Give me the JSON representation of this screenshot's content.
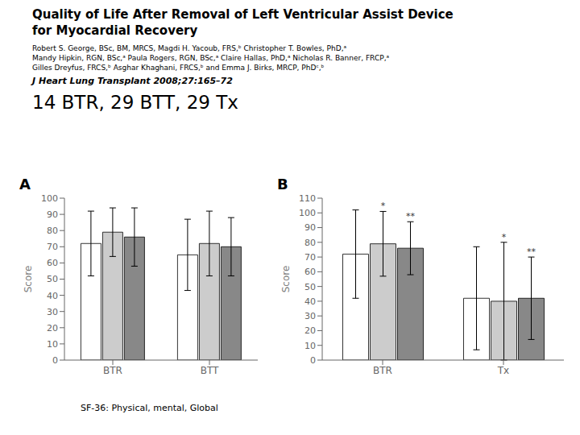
{
  "title": [
    "Quality of Life After Removal of Left Ventricular Assist Device",
    "for Myocardial Recovery"
  ],
  "authors": [
    "Robert S. George, BSc, BM, MRCS,  Magdi H. Yacoub, FRS,ᵇ Christopher T. Bowles, PhD,ᵃ",
    "Mandy Hipkin, RGN, BSc,ᵃ Paula Rogers, RGN, BSc,ᵃ Claire Hallas, PhD,ᵃ Nicholas R. Banner, FRCP,ᵃ",
    "Gilles Dreyfus, FRCS,ᵇ Asghar Khaghani, FRCS,ᵇ and Emma J. Birks, MRCP, PhDᶜ,ᵇ"
  ],
  "journal": "J Heart Lung Transplant 2008;27:165–72",
  "subtitle": "14 BTR, 29 BTT, 29 Tx",
  "footer": "SF-36: Physical, mental, Global",
  "chart_data": [
    {
      "type": "bar",
      "title": "A",
      "categories": [
        "BTR",
        "BTT"
      ],
      "ylabel": "Score",
      "ylim": [
        0,
        100
      ],
      "yticks": [
        0,
        10,
        20,
        30,
        40,
        50,
        60,
        70,
        80,
        90,
        100
      ],
      "series": [
        {
          "color": "white",
          "values": [
            72,
            65
          ],
          "errors": [
            20,
            22
          ]
        },
        {
          "color": "#cccccc",
          "values": [
            79,
            72
          ],
          "errors": [
            15,
            20
          ]
        },
        {
          "color": "#888888",
          "values": [
            76,
            70
          ],
          "errors": [
            18,
            18
          ]
        }
      ]
    },
    {
      "type": "bar",
      "title": "B",
      "categories": [
        "BTR",
        "Tx"
      ],
      "ylabel": "Score",
      "ylim": [
        0,
        110
      ],
      "yticks": [
        0,
        10,
        20,
        30,
        40,
        50,
        60,
        70,
        80,
        90,
        100,
        110
      ],
      "series": [
        {
          "color": "white",
          "values": [
            72,
            42
          ],
          "errors": [
            30,
            35
          ]
        },
        {
          "color": "#cccccc",
          "values": [
            79,
            40
          ],
          "errors": [
            22,
            40
          ],
          "stars": [
            "*",
            "*"
          ]
        },
        {
          "color": "#888888",
          "values": [
            76,
            42
          ],
          "errors": [
            18,
            28
          ],
          "stars": [
            "**",
            "**"
          ]
        }
      ]
    }
  ]
}
